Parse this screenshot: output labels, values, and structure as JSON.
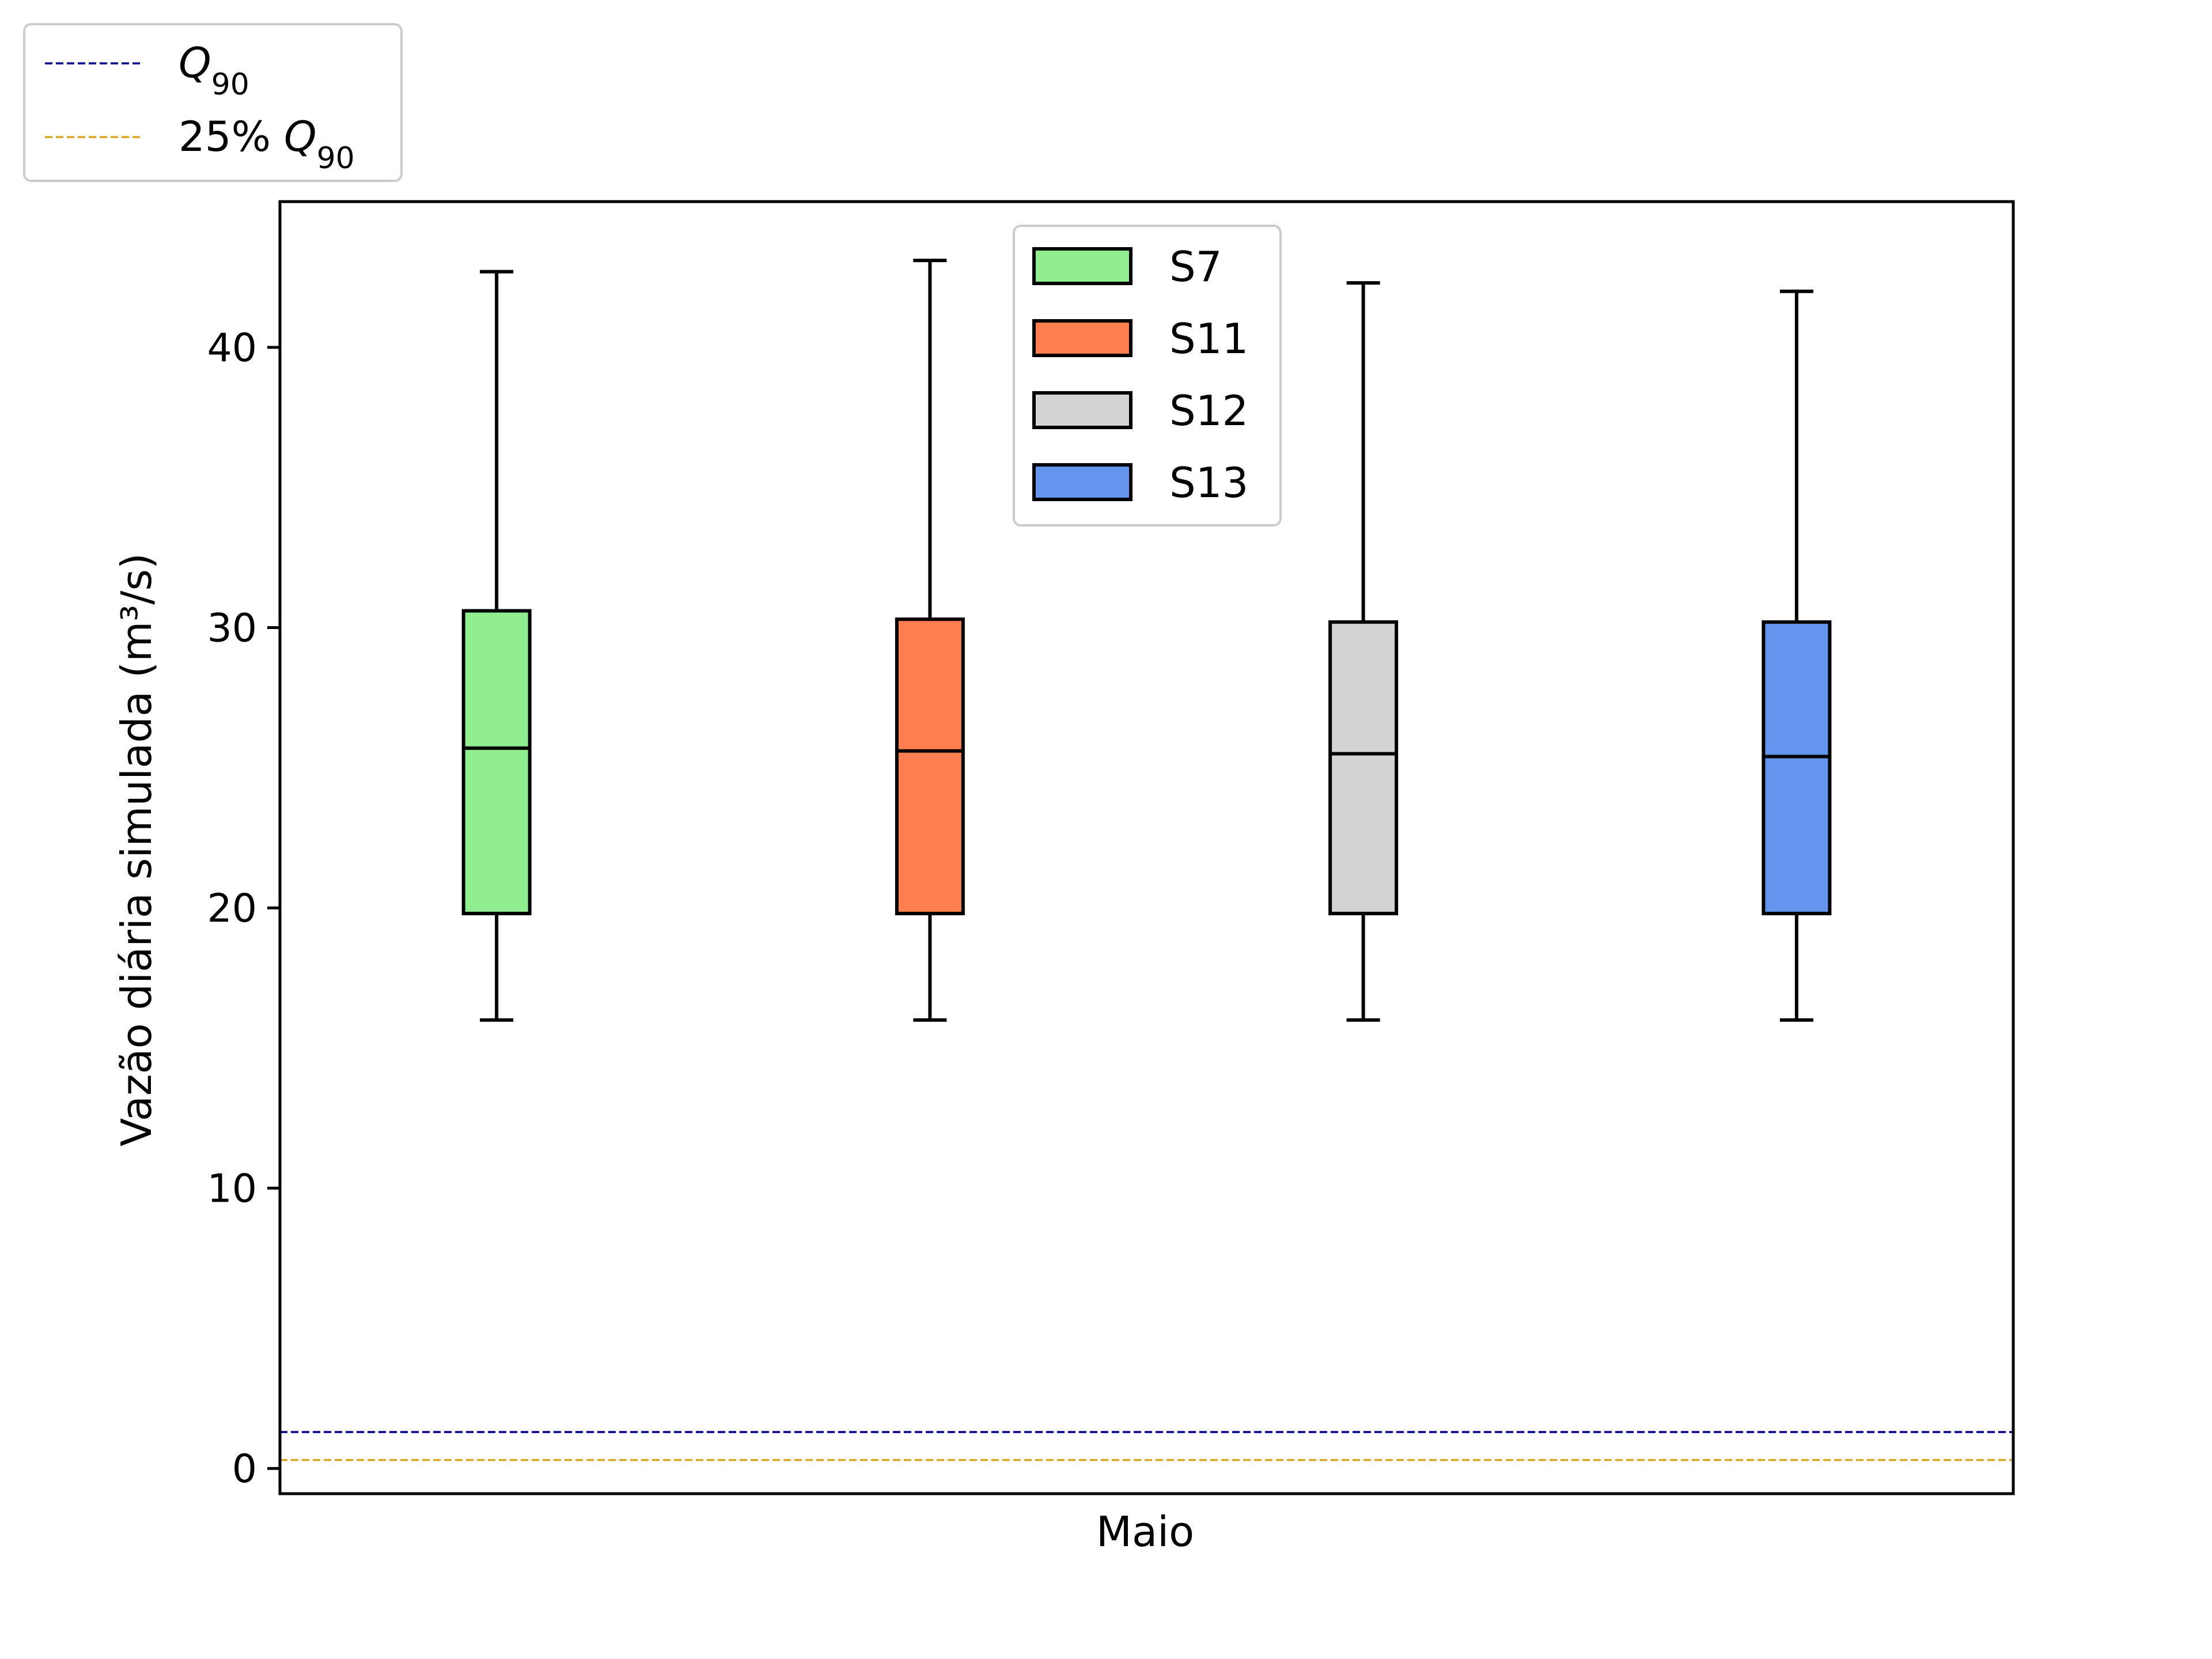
{
  "chart_data": {
    "type": "box",
    "title": "",
    "xlabel": "Maio",
    "ylabel": "Vazão diária simulada (m³/s)",
    "ylim": [
      -0.9,
      45.2
    ],
    "yticks": [
      0,
      10,
      20,
      30,
      40
    ],
    "grid": false,
    "series": [
      {
        "name": "S7",
        "color": "#90EE90",
        "whisker_low": 16.0,
        "q1": 19.8,
        "median": 25.7,
        "q3": 30.6,
        "whisker_high": 42.7
      },
      {
        "name": "S11",
        "color": "#FF7F50",
        "whisker_low": 16.0,
        "q1": 19.8,
        "median": 25.6,
        "q3": 30.3,
        "whisker_high": 43.1
      },
      {
        "name": "S12",
        "color": "#D3D3D3",
        "whisker_low": 16.0,
        "q1": 19.8,
        "median": 25.5,
        "q3": 30.2,
        "whisker_high": 42.3
      },
      {
        "name": "S13",
        "color": "#6495ED",
        "whisker_low": 16.0,
        "q1": 19.8,
        "median": 25.4,
        "q3": 30.2,
        "whisker_high": 42.0
      }
    ],
    "reference_lines": [
      {
        "name_main": "Q",
        "name_sub": "90",
        "name_prefix": "",
        "value": 1.3,
        "color": "#00008B",
        "style": "dashed"
      },
      {
        "name_main": "Q",
        "name_sub": "90",
        "name_prefix": "25% ",
        "value": 0.3,
        "color": "#DAA520",
        "style": "dashed"
      }
    ],
    "legend_boxes": "upper-center",
    "legend_lines": "top-left-outside"
  }
}
